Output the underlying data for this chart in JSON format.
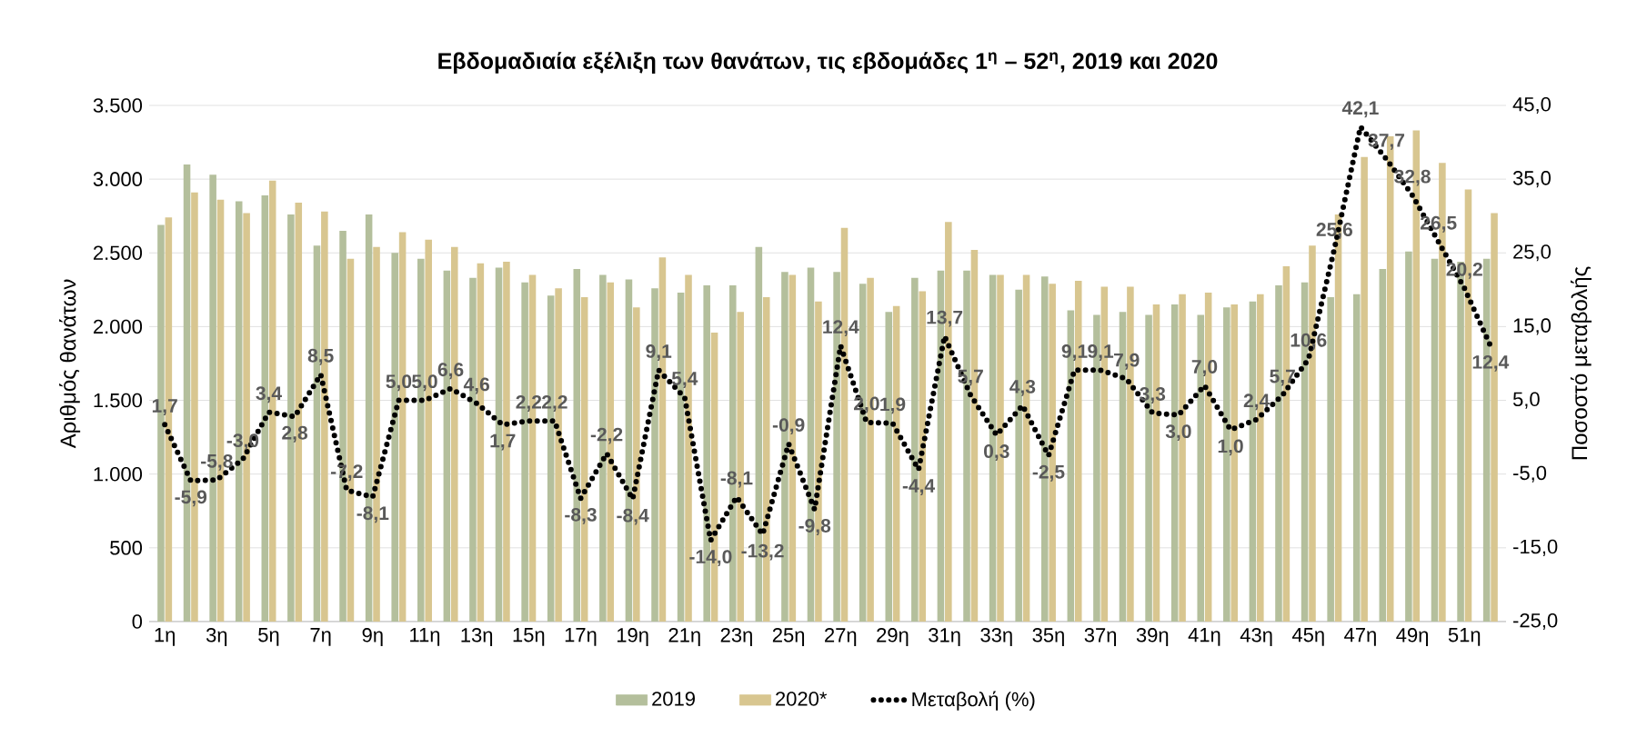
{
  "chart_data": {
    "type": "bar",
    "title": "Εβδομαδιαία εξέλιξη των θανάτων, τις εβδομάδες 1$^{η}$ – 52$^{η}$, 2019 και 2020",
    "ylabel": "Αριθμός θανάτων",
    "y2label": "Ποσοστό μεταβολής",
    "categories": [
      "1η",
      null,
      "3η",
      null,
      "5η",
      null,
      "7η",
      null,
      "9η",
      null,
      "11η",
      null,
      "13η",
      null,
      "15η",
      null,
      "17η",
      null,
      "19η",
      null,
      "21η",
      null,
      "23η",
      null,
      "25η",
      null,
      "27η",
      null,
      "29η",
      null,
      "31η",
      null,
      "33η",
      null,
      "35η",
      null,
      "37η",
      null,
      "39η",
      null,
      "41η",
      null,
      "43η",
      null,
      "45η",
      null,
      "47η",
      null,
      "49η",
      null,
      "51η",
      null
    ],
    "series": [
      {
        "name": "2019",
        "color": "#b4bf9c",
        "values": [
          2690,
          3100,
          3030,
          2850,
          2890,
          2760,
          2550,
          2650,
          2760,
          2500,
          2460,
          2380,
          2330,
          2400,
          2300,
          2210,
          2390,
          2350,
          2320,
          2260,
          2230,
          2280,
          2280,
          2540,
          2370,
          2400,
          2370,
          2290,
          2100,
          2330,
          2380,
          2380,
          2350,
          2250,
          2340,
          2110,
          2080,
          2100,
          2080,
          2150,
          2080,
          2130,
          2170,
          2280,
          2300,
          2200,
          2220,
          2390,
          2510,
          2460,
          2440,
          2460
        ]
      },
      {
        "name": "2020*",
        "color": "#d8c690",
        "values": [
          2740,
          2910,
          2860,
          2770,
          2990,
          2840,
          2780,
          2460,
          2540,
          2640,
          2590,
          2540,
          2430,
          2440,
          2350,
          2260,
          2200,
          2300,
          2130,
          2470,
          2350,
          1960,
          2100,
          2200,
          2350,
          2170,
          2670,
          2330,
          2140,
          2240,
          2710,
          2520,
          2350,
          2350,
          2290,
          2310,
          2270,
          2270,
          2150,
          2220,
          2230,
          2150,
          2220,
          2410,
          2550,
          2760,
          3150,
          3290,
          3330,
          3110,
          2930,
          2770
        ]
      },
      {
        "name": "Μεταβολή (%)",
        "type": "line",
        "axis": "y2",
        "color": "#000000",
        "line_style": "dotted",
        "values": [
          1.7,
          -5.9,
          -5.8,
          -3.0,
          3.4,
          2.8,
          8.5,
          -7.2,
          -8.1,
          5.0,
          5.0,
          6.6,
          4.6,
          1.7,
          2.2,
          2.2,
          -8.3,
          -2.2,
          -8.4,
          9.1,
          5.4,
          -14.0,
          -8.1,
          -13.2,
          -0.9,
          -9.8,
          12.4,
          2.0,
          1.9,
          -4.4,
          13.7,
          5.7,
          0.3,
          4.3,
          -2.5,
          9.1,
          9.1,
          7.9,
          3.3,
          3.0,
          7.0,
          1.0,
          2.4,
          5.7,
          10.6,
          25.6,
          42.1,
          37.7,
          32.8,
          26.5,
          20.2,
          12.4
        ],
        "value_labels": [
          "1,7",
          "-5,9",
          "-5,8",
          "-3,0",
          "3,4",
          "2,8",
          "8,5",
          "-7,2",
          "-8,1",
          "5,0",
          "5,0",
          "6,6",
          "4,6",
          "1,7",
          "2,2",
          "2,2",
          "-8,3",
          "-2,2",
          "-8,4",
          "9,1",
          "5,4",
          "-14,0",
          "-8,1",
          "-13,2",
          "-0,9",
          "-9,8",
          "12,4",
          "2,0",
          "1,9",
          "-4,4",
          "13,7",
          "5,7",
          "0,3",
          "4,3",
          "-2,5",
          "9,1",
          "9,1",
          "7,9",
          "3,3",
          "3,0",
          "7,0",
          "1,0",
          "2,4",
          "5,7",
          "10,6",
          "25,6",
          "42,1",
          "37,7",
          "32,8",
          "26,5",
          "20,2",
          "12,4"
        ]
      }
    ],
    "ylim": [
      0,
      3500
    ],
    "yticks": [
      {
        "value": 0,
        "label": "0"
      },
      {
        "value": 500,
        "label": "500"
      },
      {
        "value": 1000,
        "label": "1.000"
      },
      {
        "value": 1500,
        "label": "1.500"
      },
      {
        "value": 2000,
        "label": "2.000"
      },
      {
        "value": 2500,
        "label": "2.500"
      },
      {
        "value": 3000,
        "label": "3.000"
      },
      {
        "value": 3500,
        "label": "3.500"
      }
    ],
    "y2lim": [
      -25,
      45
    ],
    "y2ticks": [
      {
        "value": -25,
        "label": "-25,0"
      },
      {
        "value": -15,
        "label": "-15,0"
      },
      {
        "value": -5,
        "label": "-5,0"
      },
      {
        "value": 5,
        "label": "5,0"
      },
      {
        "value": 15,
        "label": "15,0"
      },
      {
        "value": 25,
        "label": "25,0"
      },
      {
        "value": 35,
        "label": "35,0"
      },
      {
        "value": 45,
        "label": "45,0"
      }
    ],
    "grid": "y",
    "legend": "bottom"
  }
}
